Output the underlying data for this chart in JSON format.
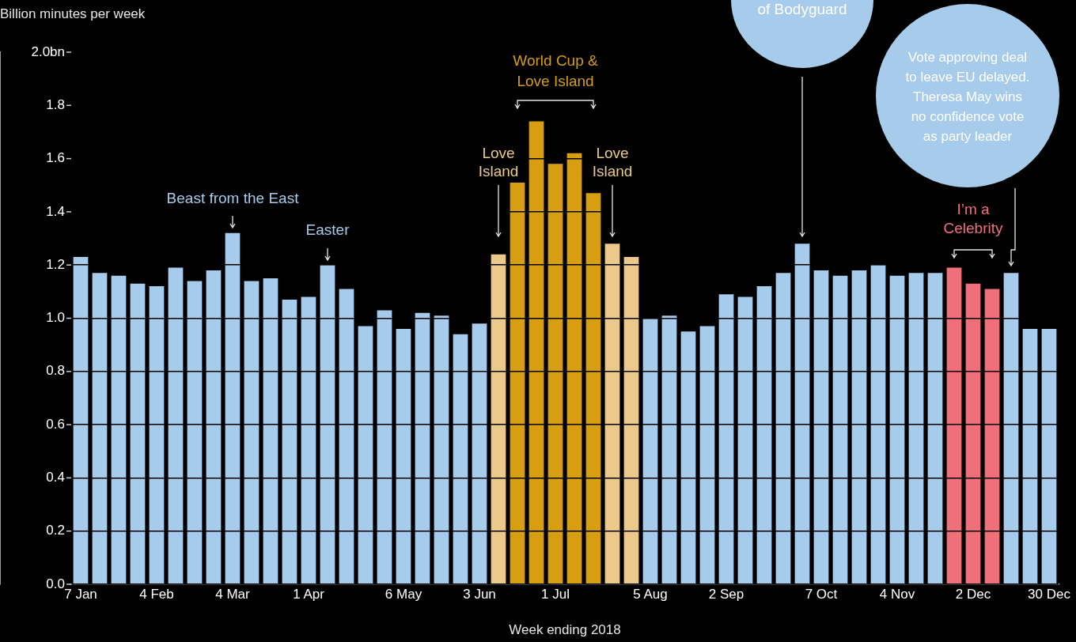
{
  "chart_data": {
    "type": "bar",
    "xlabel": "Week ending 2018",
    "ylabel": "Billion minutes per week",
    "categories": [
      "7 Jan",
      null,
      null,
      null,
      "4 Feb",
      null,
      null,
      null,
      "4 Mar",
      null,
      null,
      null,
      "1 Apr",
      null,
      null,
      null,
      null,
      "6 May",
      null,
      null,
      null,
      "3 Jun",
      null,
      null,
      null,
      "1 Jul",
      null,
      null,
      null,
      null,
      "5 Aug",
      null,
      null,
      null,
      "2 Sep",
      null,
      null,
      null,
      null,
      "7 Oct",
      null,
      null,
      null,
      "4 Nov",
      null,
      null,
      null,
      "2 Dec",
      null,
      null,
      null,
      "30 Dec"
    ],
    "values": [
      1.23,
      1.17,
      1.16,
      1.13,
      1.12,
      1.19,
      1.14,
      1.18,
      1.32,
      1.14,
      1.15,
      1.07,
      1.08,
      1.2,
      1.11,
      0.97,
      1.03,
      0.96,
      1.02,
      1.01,
      0.94,
      0.98,
      1.24,
      1.51,
      1.74,
      1.58,
      1.62,
      1.47,
      1.28,
      1.23,
      1.0,
      1.01,
      0.95,
      0.97,
      1.09,
      1.08,
      1.12,
      1.17,
      1.28,
      1.18,
      1.16,
      1.18,
      1.2,
      1.16,
      1.17,
      1.17,
      1.19,
      1.13,
      1.11,
      1.17,
      0.96,
      0.96
    ],
    "colors": [
      "#a6cbeb",
      "#a6cbeb",
      "#a6cbeb",
      "#a6cbeb",
      "#a6cbeb",
      "#a6cbeb",
      "#a6cbeb",
      "#a6cbeb",
      "#a6cbeb",
      "#a6cbeb",
      "#a6cbeb",
      "#a6cbeb",
      "#a6cbeb",
      "#a6cbeb",
      "#a6cbeb",
      "#a6cbeb",
      "#a6cbeb",
      "#a6cbeb",
      "#a6cbeb",
      "#a6cbeb",
      "#a6cbeb",
      "#a6cbeb",
      "#eac98a",
      "#d69e10",
      "#d69e10",
      "#d69e10",
      "#d69e10",
      "#d69e10",
      "#eac98a",
      "#eac98a",
      "#a6cbeb",
      "#a6cbeb",
      "#a6cbeb",
      "#a6cbeb",
      "#a6cbeb",
      "#a6cbeb",
      "#a6cbeb",
      "#a6cbeb",
      "#a6cbeb",
      "#a6cbeb",
      "#a6cbeb",
      "#a6cbeb",
      "#a6cbeb",
      "#a6cbeb",
      "#a6cbeb",
      "#a6cbeb",
      "#f0707a",
      "#f0707a",
      "#f0707a",
      "#a6cbeb",
      "#a6cbeb",
      "#a6cbeb"
    ],
    "ylim": [
      0,
      2
    ],
    "yticks": [
      {
        "value": 0,
        "label": "0.0"
      },
      0.2,
      0.4,
      0.6,
      0.8,
      {
        "value": 1,
        "label": "1.0"
      },
      1.2,
      1.4,
      1.6,
      1.8,
      {
        "value": 2,
        "label": "2.0bn"
      }
    ],
    "grid": "y",
    "annotations": [
      "Beast from the East",
      "Easter",
      "Love Island",
      "World Cup & Love Island",
      "Love Island",
      "of Bodyguard",
      "Vote approving deal to leave EU delayed. Theresa May wins no confidence vote as party leader",
      "I’m a Celebrity"
    ]
  }
}
